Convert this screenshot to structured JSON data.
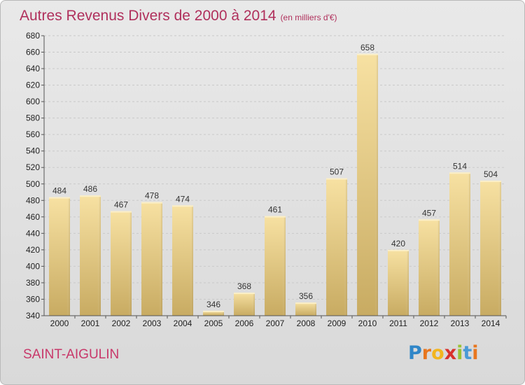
{
  "header": {
    "title": "Autres Revenus Divers de 2000 à 2014",
    "unit": "(en milliers d'€)"
  },
  "footer": {
    "place": "SAINT-AIGULIN",
    "brand_letters": [
      "P",
      "r",
      "o",
      "x",
      "i",
      "t",
      "i"
    ],
    "brand_colors": [
      "#2f86c8",
      "#e8761e",
      "#f2b51f",
      "#d8312c",
      "#9ac234",
      "#4a9ad6",
      "#e8761e"
    ]
  },
  "colors": {
    "title": "#b0305c",
    "place": "#c8386a",
    "bar_light": "#f7e1a2",
    "bar_dark": "#c8ab62",
    "gridline": "#c9c9c9",
    "axis": "#555555"
  },
  "chart_data": {
    "type": "bar",
    "title": "Autres Revenus Divers de 2000 à 2014",
    "subtitle": "(en milliers d'€)",
    "xlabel": "",
    "ylabel": "",
    "categories": [
      "2000",
      "2001",
      "2002",
      "2003",
      "2004",
      "2005",
      "2006",
      "2007",
      "2008",
      "2009",
      "2010",
      "2011",
      "2012",
      "2013",
      "2014"
    ],
    "values": [
      484,
      486,
      467,
      478,
      474,
      346,
      368,
      461,
      356,
      507,
      658,
      420,
      457,
      514,
      504
    ],
    "ylim": [
      340,
      680
    ],
    "ytick_step": 20,
    "grid": true,
    "legend": "none"
  }
}
